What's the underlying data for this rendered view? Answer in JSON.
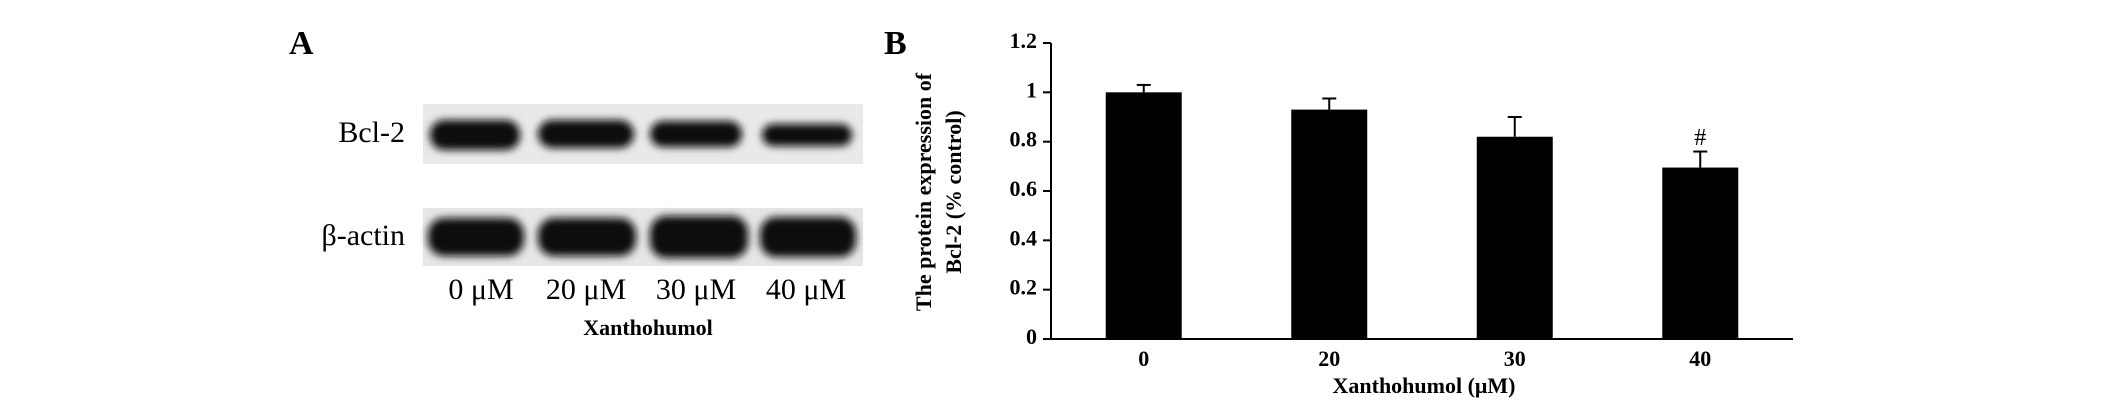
{
  "panel_a": {
    "panel_label": "A",
    "rows": [
      "Bcl-2",
      "β-actin"
    ],
    "lanes": [
      "0 μM",
      "20 μM",
      "30 μM",
      "40 μM"
    ],
    "xlabel": "Xanthohumol"
  },
  "chart_data": {
    "type": "bar",
    "panel_label": "B",
    "ylabel": [
      "The protein expression of",
      "Bcl-2 (% control)"
    ],
    "xlabel": "Xanthohumol (μM)",
    "categories": [
      "0",
      "20",
      "30",
      "40"
    ],
    "values": [
      1.0,
      0.93,
      0.82,
      0.695
    ],
    "errors": [
      0.03,
      0.045,
      0.08,
      0.065
    ],
    "color": "#000000",
    "ylim": [
      0,
      1.2
    ],
    "yticks": [
      0,
      0.2,
      0.4,
      0.6,
      0.8,
      1,
      1.2
    ],
    "annotations": [
      {
        "text": "#",
        "x": "40"
      }
    ]
  }
}
